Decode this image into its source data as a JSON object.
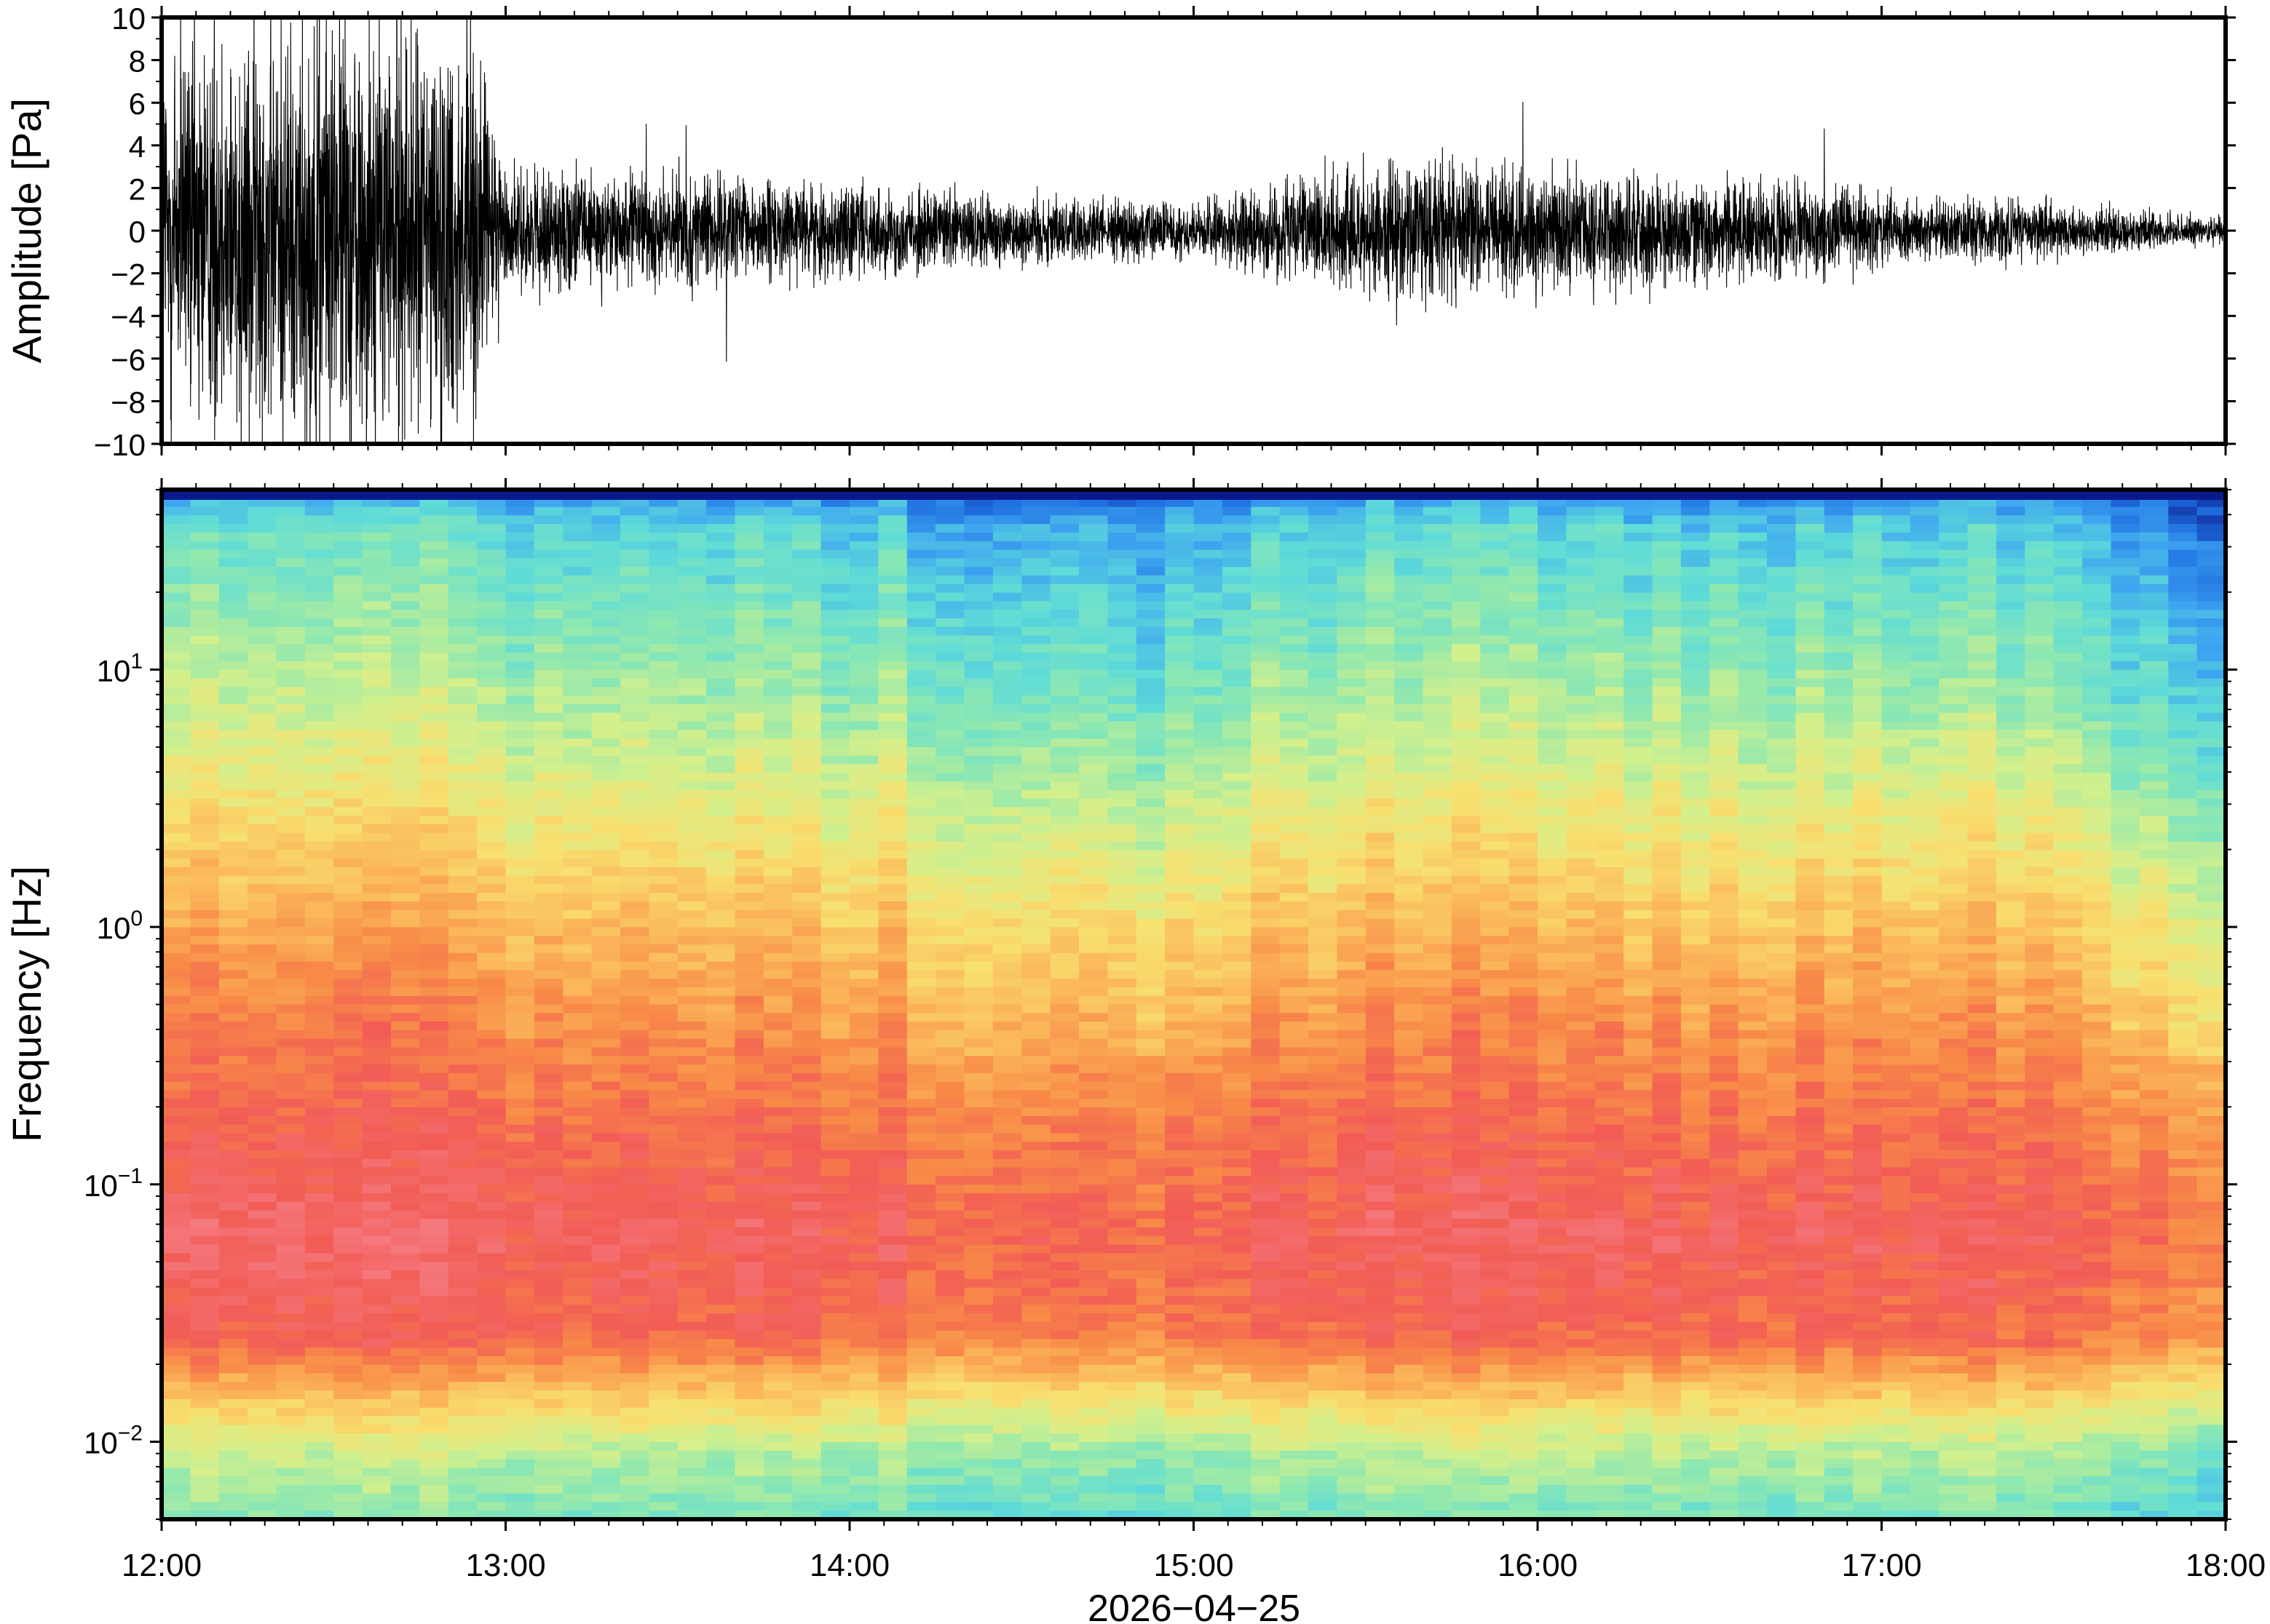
{
  "chart_data": [
    {
      "type": "line",
      "panel": "waveform",
      "ylabel": "Amplitude [Pa]",
      "yticks": [
        "10",
        "8",
        "6",
        "4",
        "2",
        "0",
        "−2",
        "−4",
        "−6",
        "−8",
        "−10"
      ],
      "ytick_values": [
        10,
        8,
        6,
        4,
        2,
        0,
        -2,
        -4,
        -6,
        -8,
        -10
      ],
      "ylim": [
        -10,
        10
      ],
      "xlim_hours": [
        12,
        18
      ],
      "series_color": "#000000",
      "envelope": {
        "time_hours": [
          12.0,
          12.5,
          12.9,
          13.0,
          13.5,
          14.0,
          14.5,
          15.0,
          15.3,
          15.6,
          16.0,
          16.5,
          16.9,
          17.0,
          17.5,
          18.0
        ],
        "amplitude_pa": [
          4.5,
          4.8,
          4.5,
          1.3,
          1.2,
          1.0,
          0.8,
          0.6,
          1.1,
          1.5,
          1.4,
          1.1,
          1.0,
          0.8,
          0.6,
          0.3
        ]
      }
    },
    {
      "type": "heatmap",
      "panel": "spectrogram",
      "ylabel": "Frequency [Hz]",
      "xlabel": "2026−04−25",
      "y_scale": "log",
      "ylim_hz": [
        0.005,
        50
      ],
      "yticks": [
        {
          "base": "10",
          "exp": "1",
          "value": 10
        },
        {
          "base": "10",
          "exp": "0",
          "value": 1
        },
        {
          "base": "10",
          "exp": "−1",
          "value": 0.1
        },
        {
          "base": "10",
          "exp": "−2",
          "value": 0.01
        }
      ],
      "xticks": [
        "12:00",
        "13:00",
        "14:00",
        "15:00",
        "16:00",
        "17:00",
        "18:00"
      ],
      "xtick_hours": [
        12,
        13,
        14,
        15,
        16,
        17,
        18
      ],
      "colormap": [
        "#0a1a8c",
        "#1f6fe0",
        "#3ea6f0",
        "#5fdcd8",
        "#8fe8b0",
        "#d4f08c",
        "#f8e070",
        "#fbb85a",
        "#f88a48",
        "#f25c55",
        "#f57a80"
      ]
    }
  ]
}
